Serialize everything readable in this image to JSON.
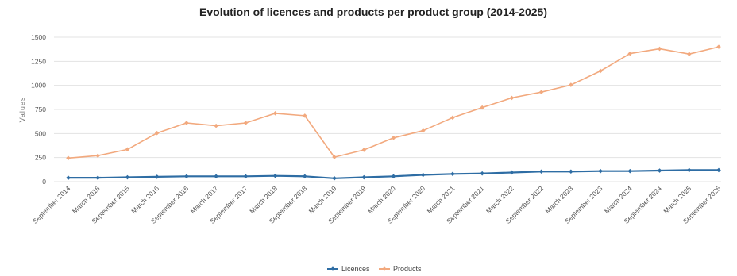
{
  "chart_data": {
    "type": "line",
    "title": "Evolution of licences and products per product group (2014-2025)",
    "xlabel": "",
    "ylabel": "Values",
    "ylim": [
      0,
      1500
    ],
    "yticks": [
      0,
      250,
      500,
      750,
      1000,
      1250,
      1500
    ],
    "grid": true,
    "legend_position": "bottom-center",
    "categories": [
      "September 2014",
      "March 2015",
      "September 2015",
      "March 2016",
      "September 2016",
      "March 2017",
      "September 2017",
      "March 2018",
      "September 2018",
      "March 2019",
      "September 2019",
      "March 2020",
      "September 2020",
      "March 2021",
      "September 2021",
      "March 2022",
      "September 2022",
      "March 2023",
      "September 2023",
      "March 2024",
      "September 2024",
      "March 2025",
      "September 2025"
    ],
    "series": [
      {
        "name": "Licences",
        "color": "#2e6da4",
        "values": [
          40,
          40,
          45,
          50,
          55,
          55,
          55,
          60,
          55,
          35,
          45,
          55,
          70,
          80,
          85,
          95,
          105,
          105,
          110,
          110,
          115,
          120,
          120
        ]
      },
      {
        "name": "Products",
        "color": "#f2a97e",
        "values": [
          245,
          270,
          335,
          505,
          610,
          580,
          610,
          710,
          685,
          255,
          330,
          455,
          530,
          665,
          770,
          870,
          930,
          1005,
          1150,
          1330,
          1380,
          1325,
          1400
        ]
      }
    ]
  }
}
